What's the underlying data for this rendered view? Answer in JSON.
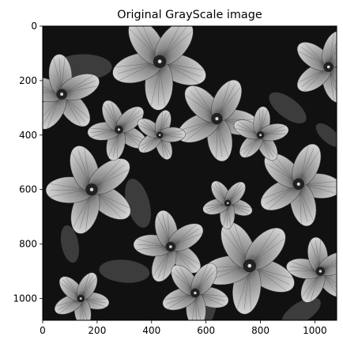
{
  "figure": {
    "title": "Original GrayScale image",
    "background_color": "#ffffff",
    "frame_color": "#000000"
  },
  "image": {
    "description_kind": "grayscale photograph",
    "colors": {
      "background": "#111111",
      "petal": "#b4b4b4",
      "petal_light": "#dcdcdc",
      "center": "#222222",
      "leaf": "#5a5a5a"
    }
  },
  "axes": {
    "x_ticks": [
      "0",
      "200",
      "400",
      "600",
      "800",
      "1000"
    ],
    "y_ticks": [
      "0",
      "200",
      "400",
      "600",
      "800",
      "1000"
    ],
    "x_range": [
      0,
      1080
    ],
    "y_range": [
      0,
      1080
    ]
  },
  "flowers": [
    {
      "x": 430,
      "y": 130,
      "r": 170,
      "petals": 5,
      "rot": 20
    },
    {
      "x": 640,
      "y": 340,
      "r": 150,
      "petals": 5,
      "rot": 10
    },
    {
      "x": 180,
      "y": 600,
      "r": 160,
      "petals": 5,
      "rot": 35
    },
    {
      "x": 940,
      "y": 580,
      "r": 150,
      "petals": 5,
      "rot": 5
    },
    {
      "x": 760,
      "y": 880,
      "r": 170,
      "petals": 5,
      "rot": 25
    },
    {
      "x": 470,
      "y": 810,
      "r": 130,
      "petals": 5,
      "rot": 40
    },
    {
      "x": 560,
      "y": 980,
      "r": 120,
      "petals": 5,
      "rot": 15
    },
    {
      "x": 70,
      "y": 250,
      "r": 140,
      "petals": 5,
      "rot": 50
    },
    {
      "x": 1050,
      "y": 150,
      "r": 130,
      "petals": 5,
      "rot": 0
    },
    {
      "x": 280,
      "y": 380,
      "r": 110,
      "petals": 5,
      "rot": 30
    },
    {
      "x": 800,
      "y": 400,
      "r": 100,
      "petals": 5,
      "rot": 60
    },
    {
      "x": 1020,
      "y": 900,
      "r": 120,
      "petals": 5,
      "rot": 45
    },
    {
      "x": 430,
      "y": 400,
      "r": 90,
      "petals": 5,
      "rot": 70
    },
    {
      "x": 680,
      "y": 650,
      "r": 90,
      "petals": 5,
      "rot": 20
    },
    {
      "x": 140,
      "y": 1000,
      "r": 100,
      "petals": 5,
      "rot": 10
    }
  ]
}
